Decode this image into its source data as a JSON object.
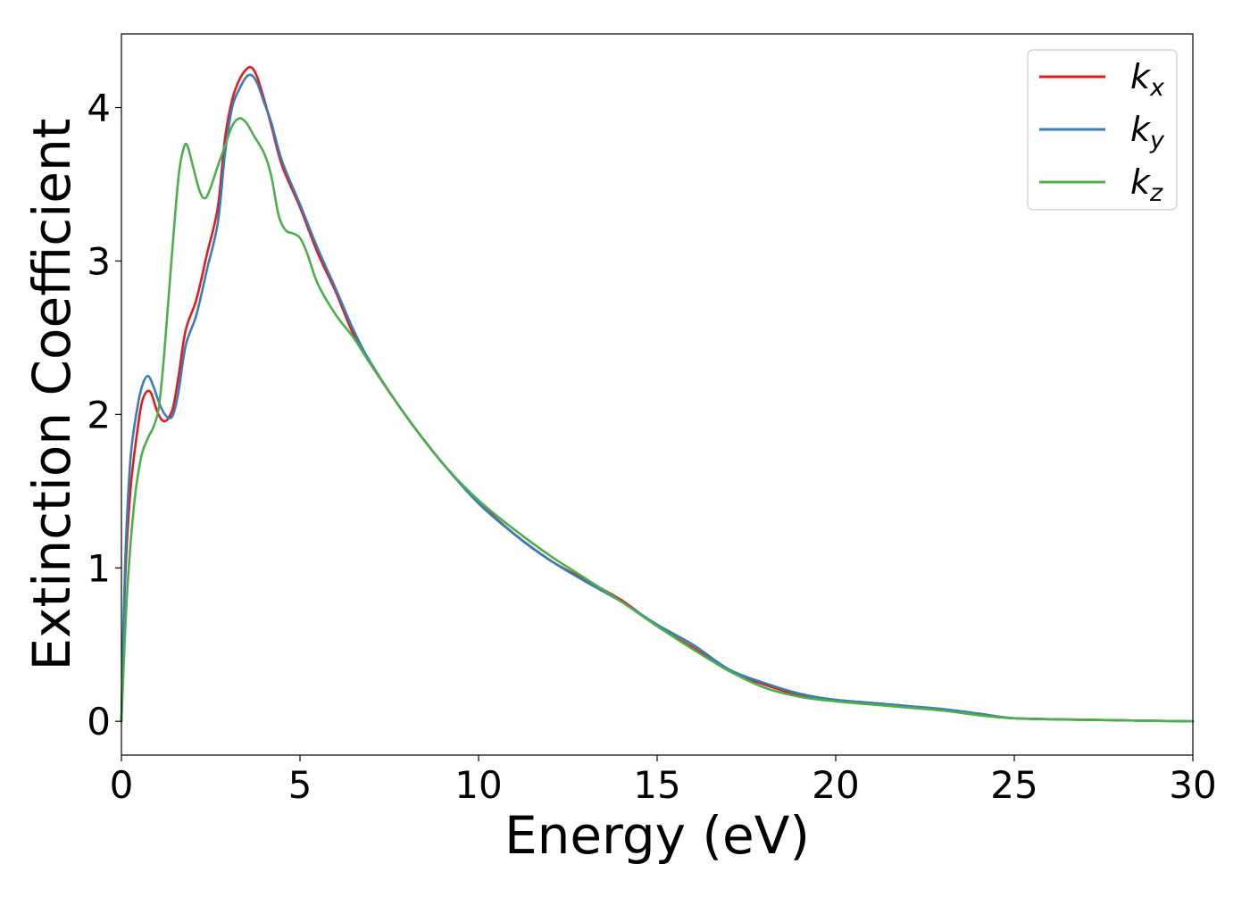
{
  "chart_data": {
    "type": "line",
    "title": "",
    "xlabel": "Energy (eV)",
    "ylabel": "Extinction Coefficient",
    "xlim": [
      0,
      30
    ],
    "ylim": [
      -0.22,
      4.48
    ],
    "xticks": [
      0,
      5,
      10,
      15,
      20,
      25,
      30
    ],
    "yticks": [
      0,
      1,
      2,
      3,
      4
    ],
    "grid": false,
    "legend_position": "top-right",
    "series": [
      {
        "name": "kx",
        "base": "k",
        "sub": "x",
        "color": "#e41a1c",
        "points": [
          [
            0,
            0
          ],
          [
            0.1,
            0.9
          ],
          [
            0.25,
            1.5
          ],
          [
            0.45,
            1.9
          ],
          [
            0.6,
            2.1
          ],
          [
            0.8,
            2.15
          ],
          [
            1.0,
            2.02
          ],
          [
            1.15,
            1.96
          ],
          [
            1.3,
            1.97
          ],
          [
            1.45,
            2.05
          ],
          [
            1.6,
            2.25
          ],
          [
            1.8,
            2.55
          ],
          [
            2.1,
            2.75
          ],
          [
            2.4,
            3.05
          ],
          [
            2.7,
            3.35
          ],
          [
            2.9,
            3.8
          ],
          [
            3.1,
            4.05
          ],
          [
            3.3,
            4.18
          ],
          [
            3.5,
            4.25
          ],
          [
            3.65,
            4.26
          ],
          [
            3.8,
            4.2
          ],
          [
            4.0,
            4.05
          ],
          [
            4.2,
            3.88
          ],
          [
            4.5,
            3.62
          ],
          [
            5.0,
            3.35
          ],
          [
            5.5,
            3.05
          ],
          [
            6.0,
            2.8
          ],
          [
            6.5,
            2.52
          ],
          [
            7.0,
            2.32
          ],
          [
            8.0,
            1.98
          ],
          [
            9.0,
            1.68
          ],
          [
            10.0,
            1.43
          ],
          [
            11.0,
            1.22
          ],
          [
            12.0,
            1.05
          ],
          [
            13.0,
            0.92
          ],
          [
            14.0,
            0.79
          ],
          [
            15.0,
            0.62
          ],
          [
            16.0,
            0.48
          ],
          [
            17.0,
            0.33
          ],
          [
            18.0,
            0.24
          ],
          [
            19.0,
            0.17
          ],
          [
            20.0,
            0.14
          ],
          [
            21.0,
            0.12
          ],
          [
            22.0,
            0.1
          ],
          [
            23.0,
            0.07
          ],
          [
            24.0,
            0.05
          ],
          [
            25.0,
            0.02
          ],
          [
            27.0,
            0.01
          ],
          [
            30.0,
            0.0
          ]
        ]
      },
      {
        "name": "ky",
        "base": "k",
        "sub": "y",
        "color": "#377eb8",
        "points": [
          [
            0,
            0
          ],
          [
            0.1,
            1.0
          ],
          [
            0.25,
            1.7
          ],
          [
            0.45,
            2.05
          ],
          [
            0.6,
            2.2
          ],
          [
            0.75,
            2.25
          ],
          [
            0.9,
            2.18
          ],
          [
            1.1,
            2.05
          ],
          [
            1.3,
            1.98
          ],
          [
            1.45,
            2.0
          ],
          [
            1.6,
            2.15
          ],
          [
            1.8,
            2.45
          ],
          [
            2.1,
            2.65
          ],
          [
            2.4,
            2.95
          ],
          [
            2.7,
            3.25
          ],
          [
            2.9,
            3.7
          ],
          [
            3.1,
            4.0
          ],
          [
            3.3,
            4.12
          ],
          [
            3.5,
            4.2
          ],
          [
            3.65,
            4.21
          ],
          [
            3.8,
            4.16
          ],
          [
            4.0,
            4.03
          ],
          [
            4.2,
            3.9
          ],
          [
            4.5,
            3.65
          ],
          [
            5.0,
            3.37
          ],
          [
            5.5,
            3.08
          ],
          [
            6.0,
            2.82
          ],
          [
            6.5,
            2.55
          ],
          [
            7.0,
            2.33
          ],
          [
            8.0,
            1.98
          ],
          [
            9.0,
            1.68
          ],
          [
            10.0,
            1.42
          ],
          [
            11.0,
            1.22
          ],
          [
            12.0,
            1.05
          ],
          [
            13.0,
            0.91
          ],
          [
            14.0,
            0.78
          ],
          [
            15.0,
            0.63
          ],
          [
            16.0,
            0.5
          ],
          [
            17.0,
            0.34
          ],
          [
            18.0,
            0.25
          ],
          [
            19.0,
            0.18
          ],
          [
            20.0,
            0.14
          ],
          [
            21.0,
            0.12
          ],
          [
            22.0,
            0.1
          ],
          [
            23.0,
            0.08
          ],
          [
            24.0,
            0.05
          ],
          [
            25.0,
            0.02
          ],
          [
            27.0,
            0.01
          ],
          [
            30.0,
            0.0
          ]
        ]
      },
      {
        "name": "kz",
        "base": "k",
        "sub": "z",
        "color": "#4daf4a",
        "points": [
          [
            0,
            0
          ],
          [
            0.15,
            0.8
          ],
          [
            0.35,
            1.4
          ],
          [
            0.55,
            1.72
          ],
          [
            0.75,
            1.85
          ],
          [
            0.9,
            1.92
          ],
          [
            1.05,
            2.05
          ],
          [
            1.2,
            2.4
          ],
          [
            1.4,
            3.0
          ],
          [
            1.6,
            3.55
          ],
          [
            1.75,
            3.74
          ],
          [
            1.85,
            3.75
          ],
          [
            2.0,
            3.62
          ],
          [
            2.2,
            3.45
          ],
          [
            2.35,
            3.41
          ],
          [
            2.5,
            3.48
          ],
          [
            2.7,
            3.62
          ],
          [
            2.9,
            3.75
          ],
          [
            3.1,
            3.88
          ],
          [
            3.3,
            3.93
          ],
          [
            3.5,
            3.9
          ],
          [
            3.7,
            3.82
          ],
          [
            4.0,
            3.7
          ],
          [
            4.2,
            3.55
          ],
          [
            4.4,
            3.3
          ],
          [
            4.6,
            3.2
          ],
          [
            4.8,
            3.18
          ],
          [
            5.0,
            3.15
          ],
          [
            5.2,
            3.05
          ],
          [
            5.5,
            2.85
          ],
          [
            6.0,
            2.65
          ],
          [
            6.5,
            2.5
          ],
          [
            7.0,
            2.32
          ],
          [
            8.0,
            1.98
          ],
          [
            9.0,
            1.68
          ],
          [
            10.0,
            1.44
          ],
          [
            11.0,
            1.25
          ],
          [
            12.0,
            1.08
          ],
          [
            13.0,
            0.93
          ],
          [
            14.0,
            0.78
          ],
          [
            15.0,
            0.62
          ],
          [
            16.0,
            0.47
          ],
          [
            17.0,
            0.33
          ],
          [
            18.0,
            0.22
          ],
          [
            19.0,
            0.16
          ],
          [
            20.0,
            0.13
          ],
          [
            21.0,
            0.11
          ],
          [
            22.0,
            0.09
          ],
          [
            23.0,
            0.07
          ],
          [
            24.0,
            0.04
          ],
          [
            25.0,
            0.02
          ],
          [
            27.0,
            0.01
          ],
          [
            30.0,
            0.0
          ]
        ]
      }
    ]
  }
}
